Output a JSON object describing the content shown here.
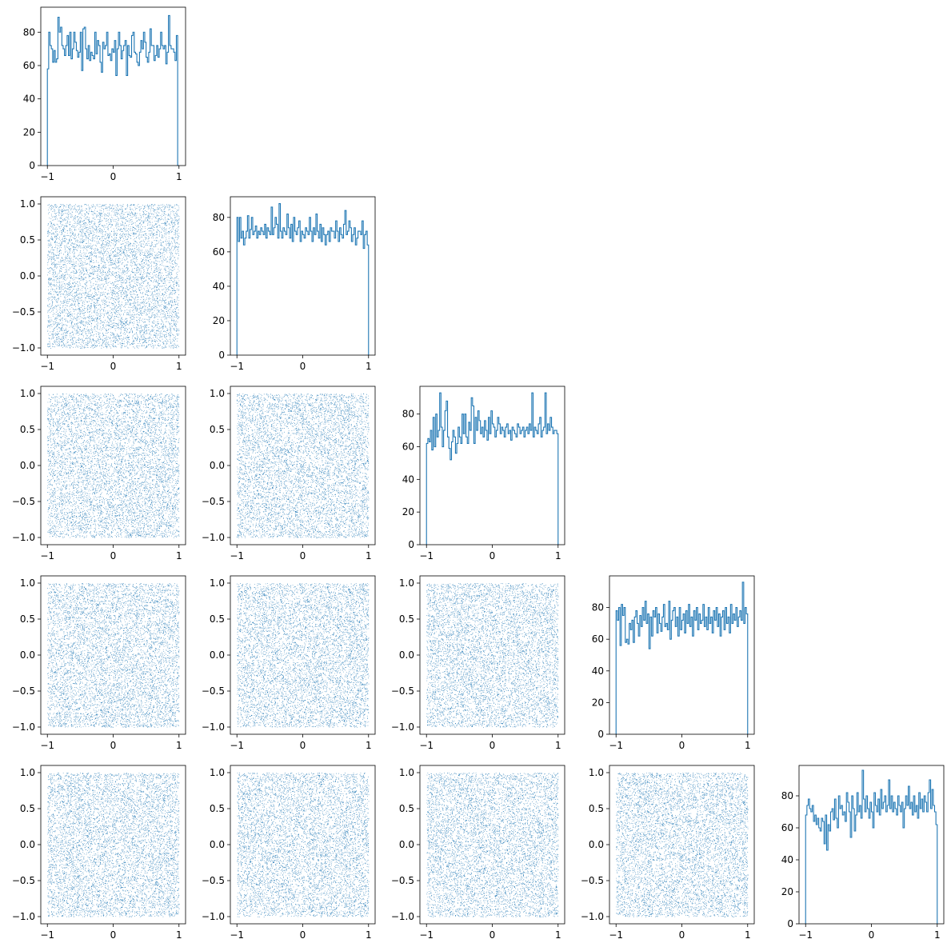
{
  "chart_data": {
    "type": "corner_plot",
    "n_dims": 5,
    "series_color": "#1f77b4",
    "hist_bins": 100,
    "samples_per_dim": 7000,
    "x_range": [
      -1,
      1
    ],
    "scatter_ylim": [
      -1.1,
      1.1
    ],
    "x_tick_labels": [
      "−1",
      "0",
      "1"
    ],
    "scatter_y_tick_labels": [
      "−1.0",
      "−0.5",
      "0.0",
      "0.5",
      "1.0"
    ],
    "hist_y_tick_labels": [
      "0",
      "20",
      "40",
      "60",
      "80"
    ],
    "histograms": [
      {
        "dim": 0,
        "ylim": [
          0,
          95
        ],
        "counts": [
          58,
          80,
          72,
          70,
          62,
          69,
          62,
          64,
          89,
          80,
          83,
          72,
          70,
          66,
          72,
          78,
          66,
          80,
          64,
          70,
          80,
          74,
          69,
          65,
          68,
          80,
          57,
          82,
          83,
          70,
          64,
          72,
          63,
          68,
          66,
          64,
          80,
          67,
          75,
          72,
          62,
          56,
          74,
          70,
          72,
          80,
          66,
          67,
          63,
          70,
          68,
          75,
          54,
          70,
          80,
          72,
          64,
          69,
          72,
          75,
          54,
          72,
          66,
          65,
          78,
          80,
          68,
          67,
          62,
          60,
          68,
          75,
          70,
          80,
          74,
          65,
          62,
          68,
          82,
          72,
          72,
          63,
          66,
          72,
          65,
          70,
          80,
          72,
          70,
          72,
          61,
          68,
          90,
          72,
          70,
          70,
          68,
          63,
          78,
          0
        ]
      },
      {
        "dim": 1,
        "ylim": [
          0,
          92
        ],
        "counts": [
          80,
          66,
          80,
          68,
          72,
          64,
          68,
          72,
          81,
          68,
          73,
          80,
          70,
          72,
          75,
          68,
          72,
          70,
          74,
          72,
          70,
          76,
          68,
          74,
          72,
          70,
          86,
          70,
          74,
          80,
          76,
          68,
          88,
          72,
          68,
          74,
          72,
          70,
          82,
          74,
          68,
          76,
          66,
          80,
          72,
          70,
          74,
          78,
          66,
          72,
          70,
          68,
          74,
          72,
          70,
          80,
          72,
          66,
          74,
          70,
          82,
          72,
          68,
          76,
          66,
          74,
          70,
          64,
          70,
          72,
          66,
          74,
          72,
          72,
          68,
          78,
          72,
          66,
          74,
          70,
          68,
          76,
          84,
          70,
          72,
          78,
          74,
          66,
          70,
          74,
          64,
          68,
          72,
          72,
          70,
          78,
          62,
          70,
          72,
          64
        ]
      },
      {
        "dim": 2,
        "ylim": [
          0,
          97
        ],
        "counts": [
          62,
          65,
          63,
          70,
          58,
          78,
          60,
          80,
          66,
          70,
          93,
          72,
          60,
          70,
          82,
          88,
          66,
          59,
          52,
          63,
          70,
          66,
          56,
          62,
          72,
          66,
          62,
          80,
          68,
          80,
          66,
          62,
          75,
          70,
          90,
          85,
          62,
          78,
          70,
          82,
          76,
          68,
          72,
          66,
          76,
          70,
          64,
          78,
          68,
          82,
          74,
          72,
          66,
          70,
          78,
          74,
          68,
          72,
          70,
          66,
          72,
          74,
          68,
          70,
          64,
          72,
          70,
          68,
          66,
          74,
          72,
          68,
          70,
          72,
          66,
          70,
          72,
          68,
          74,
          70,
          93,
          66,
          72,
          70,
          68,
          74,
          78,
          66,
          70,
          72,
          93,
          68,
          74,
          70,
          78,
          72,
          68,
          70,
          70,
          68
        ]
      },
      {
        "dim": 3,
        "ylim": [
          0,
          100
        ],
        "counts": [
          78,
          72,
          80,
          56,
          82,
          75,
          80,
          58,
          60,
          57,
          70,
          66,
          72,
          58,
          74,
          78,
          70,
          62,
          75,
          68,
          80,
          72,
          84,
          70,
          76,
          54,
          74,
          62,
          78,
          74,
          80,
          64,
          76,
          70,
          65,
          74,
          82,
          68,
          70,
          66,
          84,
          60,
          72,
          78,
          80,
          68,
          74,
          62,
          80,
          66,
          72,
          76,
          64,
          78,
          70,
          82,
          68,
          74,
          62,
          78,
          72,
          80,
          66,
          76,
          70,
          72,
          82,
          68,
          74,
          66,
          80,
          70,
          74,
          64,
          78,
          72,
          80,
          68,
          76,
          62,
          74,
          78,
          66,
          80,
          70,
          74,
          64,
          82,
          70,
          76,
          72,
          80,
          68,
          74,
          78,
          72,
          96,
          70,
          80,
          76
        ]
      },
      {
        "dim": 4,
        "ylim": [
          0,
          99
        ],
        "counts": [
          68,
          74,
          78,
          72,
          70,
          74,
          64,
          68,
          62,
          66,
          60,
          58,
          66,
          64,
          50,
          68,
          46,
          62,
          58,
          70,
          72,
          65,
          78,
          66,
          60,
          80,
          72,
          74,
          68,
          70,
          64,
          82,
          76,
          70,
          54,
          80,
          72,
          58,
          68,
          82,
          70,
          74,
          66,
          96,
          78,
          70,
          80,
          72,
          66,
          76,
          70,
          60,
          82,
          74,
          70,
          78,
          68,
          84,
          72,
          76,
          80,
          70,
          74,
          90,
          72,
          80,
          70,
          76,
          72,
          68,
          80,
          74,
          70,
          76,
          60,
          72,
          80,
          74,
          86,
          72,
          76,
          68,
          80,
          70,
          74,
          66,
          82,
          72,
          78,
          70,
          80,
          76,
          70,
          82,
          90,
          72,
          84,
          74,
          70,
          62
        ]
      }
    ],
    "title": "",
    "xlabel": "",
    "ylabel": ""
  }
}
